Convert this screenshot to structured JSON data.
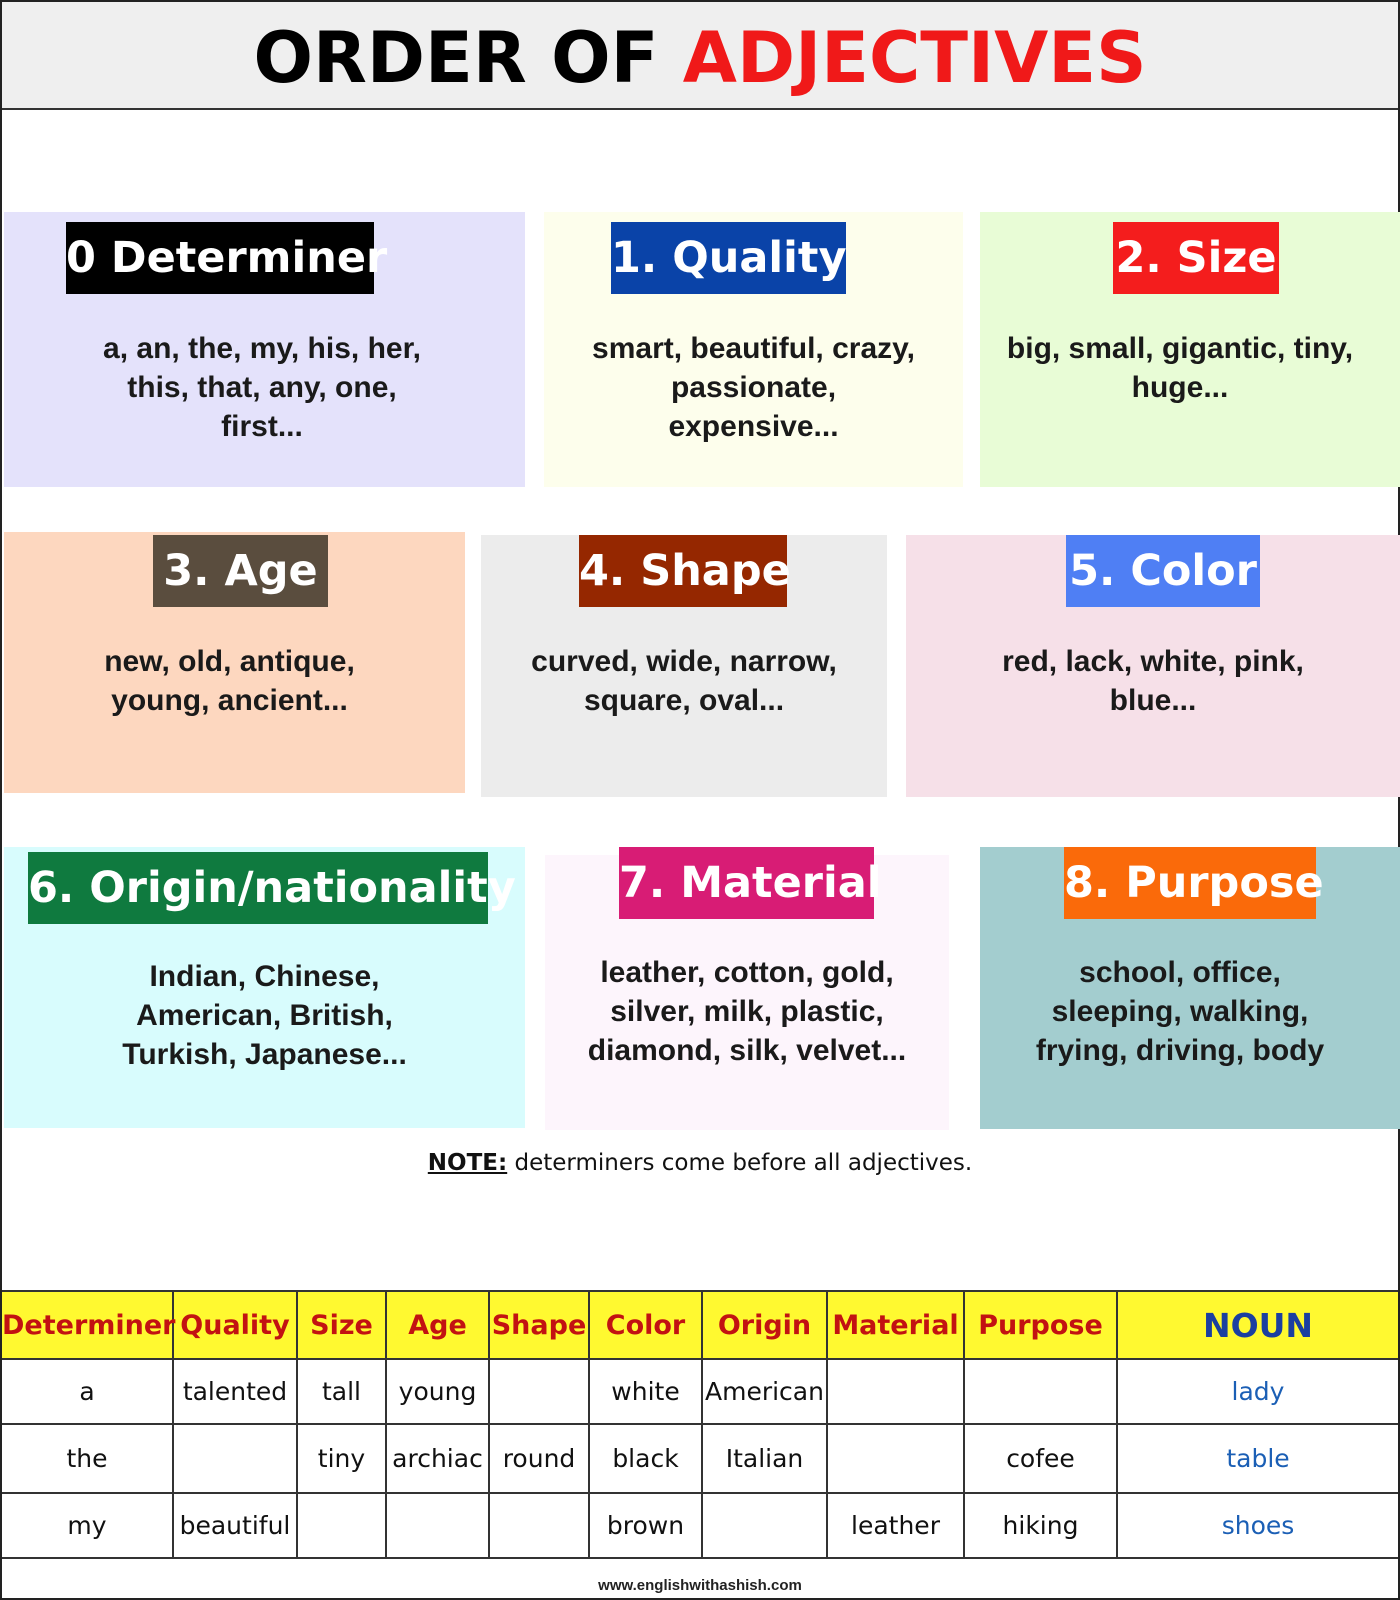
{
  "title": {
    "part1": "ORDER OF",
    "part2": "ADJECTIVES"
  },
  "colors": {
    "title_black": "#000000",
    "title_red": "#f01919",
    "header_row": "#fff930",
    "header_text": "#c21212",
    "noun_text": "#1b5fb5"
  },
  "cards": [
    {
      "label": "0 Determiner",
      "text": "a, an, the, my, his, her, this, that, any, one, first...",
      "bg": "#e4e2fb",
      "badge": "#000000"
    },
    {
      "label": "1. Quality",
      "text": "smart, beautiful, crazy, passionate, expensive...",
      "bg": "#fdfeec",
      "badge": "#0a43a8"
    },
    {
      "label": "2. Size",
      "text": "big, small, gigantic, tiny, huge...",
      "bg": "#e8fcd6",
      "badge": "#f41d1d"
    },
    {
      "label": "3. Age",
      "text": "new, old, antique, young, ancient...",
      "bg": "#fdd7bf",
      "badge": "#5a4d3e"
    },
    {
      "label": "4. Shape",
      "text": "curved, wide, narrow, square, oval...",
      "bg": "#ececec",
      "badge": "#952700"
    },
    {
      "label": "5. Color",
      "text": "red, lack, white, pink, blue...",
      "bg": "#f6e0e8",
      "badge": "#4f7ff4"
    },
    {
      "label": "6. Origin/nationality",
      "text": "Indian, Chinese, American, British, Turkish, Japanese...",
      "bg": "#d8fcfd",
      "badge": "#0f7a3f"
    },
    {
      "label": "7. Material",
      "text": "leather, cotton, gold, silver, milk, plastic, diamond, silk, velvet...",
      "bg": "#fdf5fc",
      "badge": "#d81c75"
    },
    {
      "label": "8. Purpose",
      "text": "school, office, sleeping, walking, frying, driving, body",
      "bg": "#a3cdcf",
      "badge": "#fa6a0a"
    }
  ],
  "note": {
    "label": "NOTE:",
    "text": " determiners come before all adjectives."
  },
  "table": {
    "headers": [
      "Determiner",
      "Quality",
      "Size",
      "Age",
      "Shape",
      "Color",
      "Origin",
      "Material",
      "Purpose",
      "NOUN"
    ],
    "rows": [
      [
        "a",
        "talented",
        "tall",
        "young",
        "",
        "white",
        "American",
        "",
        "",
        "lady"
      ],
      [
        "the",
        "",
        "tiny",
        "archiac",
        "round",
        "black",
        "Italian",
        "",
        "cofee",
        "table"
      ],
      [
        "my",
        "beautiful",
        "",
        "",
        "",
        "brown",
        "",
        "leather",
        "hiking",
        "shoes"
      ]
    ]
  },
  "footer": "www.englishwithashish.com"
}
